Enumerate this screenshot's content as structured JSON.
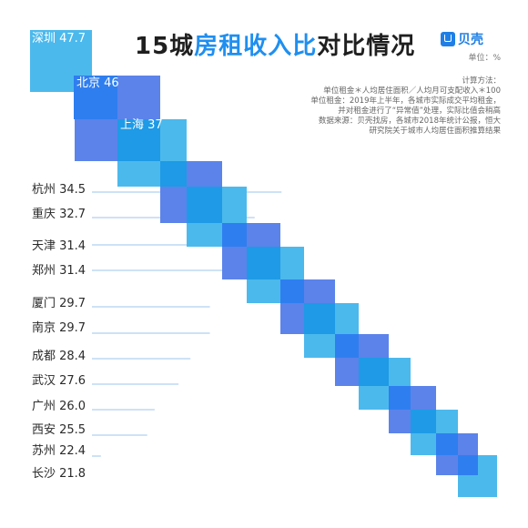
{
  "chart_data": {
    "type": "bar",
    "title_prefix": "15城",
    "title_highlight": "房租收入比",
    "title_suffix": "对比情况",
    "unit_text": "单位：%",
    "brand": {
      "name": "贝壳",
      "icon": "beike-logo-icon",
      "color": "#1f7fe6"
    },
    "method_lines": [
      "计算方法：",
      "单位租金＊人均居住面积／人均月可支配收入＊100",
      "单位租金：2019年上半年，各城市实际成交平均租金，",
      "并对租金进行了“异常值”处理，实际比值会稍高",
      "数据来源：贝壳找房，各城市2018年统计公报，恒大",
      "研究院关于城市人均居住面积推算结果"
    ],
    "categories": [
      "深圳",
      "北京",
      "上海",
      "杭州",
      "重庆",
      "天津",
      "郑州",
      "厦门",
      "南京",
      "成都",
      "武汉",
      "广州",
      "西安",
      "苏州",
      "长沙"
    ],
    "values": [
      47.7,
      46,
      37,
      34.5,
      32.7,
      31.4,
      31.4,
      29.7,
      29.7,
      28.4,
      27.6,
      26.0,
      25.5,
      22.4,
      21.8
    ],
    "value_labels": [
      "47.7",
      "46",
      "37",
      "34.5",
      "32.7",
      "31.4",
      "31.4",
      "29.7",
      "29.7",
      "28.4",
      "27.6",
      "26.0",
      "25.5",
      "22.4",
      "21.8"
    ],
    "colors": {
      "light": "#4cb9ec",
      "medium": "#1e9ae6",
      "dark": "#2f7ef0",
      "periwinkle": "#5b83ea",
      "line": "#9cc6ee",
      "label": "#2a2a2a"
    }
  }
}
